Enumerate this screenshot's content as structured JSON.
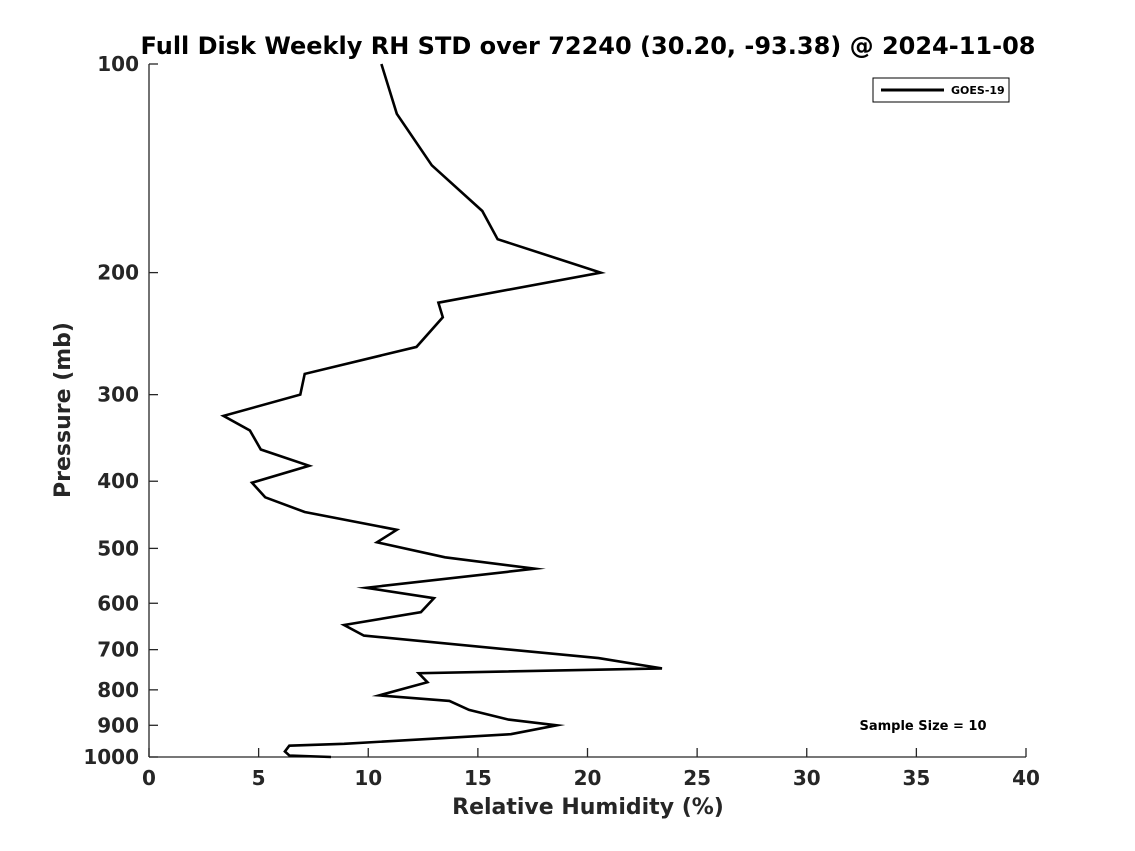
{
  "chart_data": {
    "type": "line",
    "title": "Full Disk Weekly RH STD over 72240 (30.20, -93.38) @ 2024-11-08",
    "xlabel": "Relative Humidity (%)",
    "ylabel": "Pressure (mb)",
    "xlim": [
      0,
      40
    ],
    "ylim": [
      100,
      1000
    ],
    "y_scale": "log",
    "y_direction": "reversed",
    "x_ticks": [
      0,
      5,
      10,
      15,
      20,
      25,
      30,
      35,
      40
    ],
    "x_tick_labels": [
      "0",
      "5",
      "10",
      "15",
      "20",
      "25",
      "30",
      "35",
      "40"
    ],
    "y_ticks": [
      100,
      200,
      300,
      400,
      500,
      600,
      700,
      800,
      900,
      1000
    ],
    "y_tick_labels": [
      "100",
      "200",
      "300",
      "400",
      "500",
      "600",
      "700",
      "800",
      "900",
      "1000"
    ],
    "grid": false,
    "legend": {
      "position": "top-right",
      "entries": [
        "GOES-19"
      ]
    },
    "annotation": "Sample Size = 10",
    "line_color": "#000000",
    "series": [
      {
        "name": "GOES-19",
        "x": [
          10.6,
          11.3,
          12.9,
          15.2,
          15.9,
          20.6,
          13.2,
          13.4,
          12.2,
          7.1,
          6.9,
          3.4,
          4.6,
          5.1,
          7.3,
          4.7,
          5.3,
          7.1,
          11.3,
          10.4,
          13.5,
          17.6,
          9.9,
          13.0,
          12.4,
          8.9,
          9.8,
          20.5,
          23.4,
          12.3,
          12.7,
          10.5,
          13.7,
          14.6,
          16.4,
          18.6,
          16.5,
          8.9,
          6.4,
          6.2,
          6.4,
          8.3
        ],
        "y": [
          100,
          118,
          140,
          163,
          179,
          200,
          221,
          232,
          256,
          280,
          300,
          322,
          338,
          360,
          380,
          402,
          422,
          443,
          470,
          490,
          515,
          535,
          570,
          590,
          618,
          645,
          668,
          720,
          745,
          757,
          780,
          815,
          830,
          855,
          883,
          900,
          927,
          957,
          963,
          982,
          995,
          1000
        ]
      }
    ]
  }
}
